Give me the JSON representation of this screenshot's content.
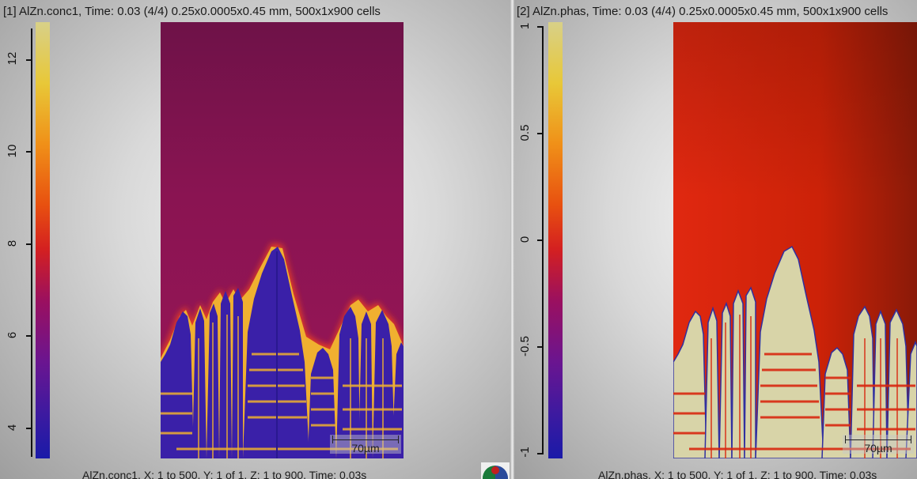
{
  "panel1": {
    "title": "[1] AlZn.conc1, Time: 0.03 (4/4) 0.25x0.0005x0.45 mm, 500x1x900 cells",
    "footer": "AlZn.conc1, X: 1 to 500, Y: 1 of 1, Z: 1 to 900, Time: 0.03s",
    "colorbar_ticks": [
      "4",
      "6",
      "8",
      "10",
      "12"
    ],
    "scalebar_label": "70µm"
  },
  "panel2": {
    "title": "[2] AlZn.phas, Time: 0.03 (4/4) 0.25x0.0005x0.45 mm, 500x1x900 cells",
    "footer": "AlZn.phas, X: 1 to 500, Y: 1 of 1, Z: 1 to 900, Time: 0.03s",
    "colorbar_ticks": [
      "-1",
      "-0.5",
      "0",
      "0.5",
      "1"
    ],
    "scalebar_label": "70µm"
  },
  "colors": {
    "conc_background": "#8a1550",
    "conc_dendrite": "#3a22a8",
    "conc_rim": "#f0a030",
    "phas_background": "#d62810",
    "phas_dendrite": "#d8d4a8",
    "phas_edge": "#3030a0"
  },
  "icons": {
    "logo": "app-logo-icon"
  }
}
